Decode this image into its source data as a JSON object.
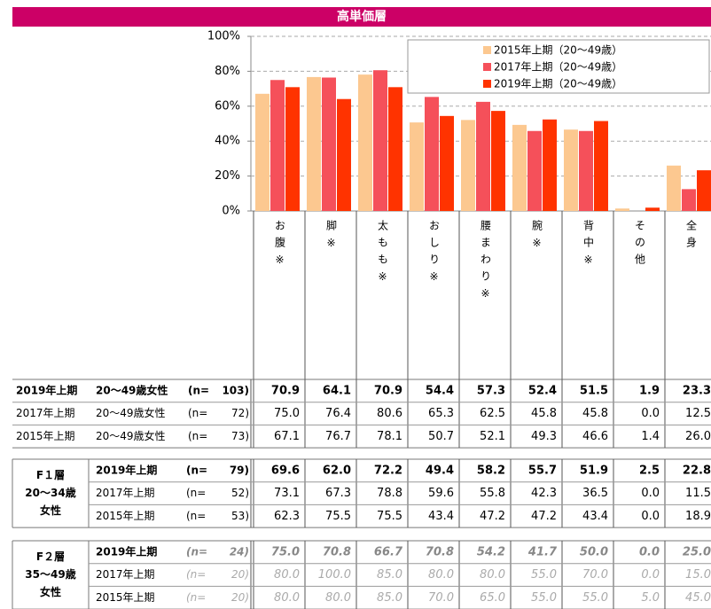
{
  "header": {
    "title": "高単価層"
  },
  "chart_data": {
    "type": "bar",
    "categories": [
      "お腹※",
      "脚※",
      "太もも※",
      "おしり※",
      "腰まわり※",
      "腕※",
      "背中※",
      "その他",
      "全身"
    ],
    "series": [
      {
        "name": "2015年上期（20〜49歳）",
        "color": "#fcc890",
        "values": [
          67.1,
          76.7,
          78.1,
          50.7,
          52.1,
          49.3,
          46.6,
          1.4,
          26.0
        ]
      },
      {
        "name": "2017年上期（20〜49歳）",
        "color": "#f5505a",
        "values": [
          75.0,
          76.4,
          80.6,
          65.3,
          62.5,
          45.8,
          45.8,
          0.0,
          12.5
        ]
      },
      {
        "name": "2019年上期（20〜49歳）",
        "color": "#ff3300",
        "values": [
          70.9,
          64.1,
          70.9,
          54.4,
          57.3,
          52.4,
          51.5,
          1.9,
          23.3
        ]
      }
    ],
    "ylim": [
      0,
      100
    ],
    "yticks": [
      {
        "value": 0,
        "label": "0%"
      },
      {
        "value": 20,
        "label": "20%"
      },
      {
        "value": 40,
        "label": "40%"
      },
      {
        "value": 60,
        "label": "60%"
      },
      {
        "value": 80,
        "label": "80%"
      },
      {
        "value": 100,
        "label": "100%"
      }
    ],
    "grid": true,
    "legend": "top-right"
  },
  "table": {
    "blocks": [
      {
        "label": null,
        "rows": [
          {
            "period": "2019年上期",
            "segment": "20〜49歳女性",
            "n_open": "(n=",
            "n_close": "103)",
            "values": [
              "70.9",
              "64.1",
              "70.9",
              "54.4",
              "57.3",
              "52.4",
              "51.5",
              "1.9",
              "23.3"
            ]
          },
          {
            "period": "2017年上期",
            "segment": "20〜49歳女性",
            "n_open": "(n=",
            "n_close": "72)",
            "values": [
              "75.0",
              "76.4",
              "80.6",
              "65.3",
              "62.5",
              "45.8",
              "45.8",
              "0.0",
              "12.5"
            ]
          },
          {
            "period": "2015年上期",
            "segment": "20〜49歳女性",
            "n_open": "(n=",
            "n_close": "73)",
            "values": [
              "67.1",
              "76.7",
              "78.1",
              "50.7",
              "52.1",
              "49.3",
              "46.6",
              "1.4",
              "26.0"
            ]
          }
        ]
      },
      {
        "label": [
          "F１層",
          "20〜34歳",
          "女性"
        ],
        "rows": [
          {
            "period": "2019年上期",
            "n_open": "(n=",
            "n_close": "79)",
            "values": [
              "69.6",
              "62.0",
              "72.2",
              "49.4",
              "58.2",
              "55.7",
              "51.9",
              "2.5",
              "22.8"
            ]
          },
          {
            "period": "2017年上期",
            "n_open": "(n=",
            "n_close": "52)",
            "values": [
              "73.1",
              "67.3",
              "78.8",
              "59.6",
              "55.8",
              "42.3",
              "36.5",
              "0.0",
              "11.5"
            ]
          },
          {
            "period": "2015年上期",
            "n_open": "(n=",
            "n_close": "53)",
            "values": [
              "62.3",
              "75.5",
              "75.5",
              "43.4",
              "47.2",
              "47.2",
              "43.4",
              "0.0",
              "18.9"
            ]
          }
        ]
      },
      {
        "label": [
          "F２層",
          "35〜49歳",
          "女性"
        ],
        "rows": [
          {
            "period": "2019年上期",
            "n_open": "(n=",
            "n_close": "24)",
            "values": [
              "75.0",
              "70.8",
              "66.7",
              "70.8",
              "54.2",
              "41.7",
              "50.0",
              "0.0",
              "25.0"
            ]
          },
          {
            "period": "2017年上期",
            "n_open": "(n=",
            "n_close": "20)",
            "values": [
              "80.0",
              "100.0",
              "85.0",
              "80.0",
              "80.0",
              "55.0",
              "70.0",
              "0.0",
              "15.0"
            ]
          },
          {
            "period": "2015年上期",
            "n_open": "(n=",
            "n_close": "20)",
            "values": [
              "80.0",
              "80.0",
              "85.0",
              "70.0",
              "65.0",
              "55.0",
              "55.0",
              "5.0",
              "45.0"
            ]
          }
        ]
      }
    ]
  }
}
